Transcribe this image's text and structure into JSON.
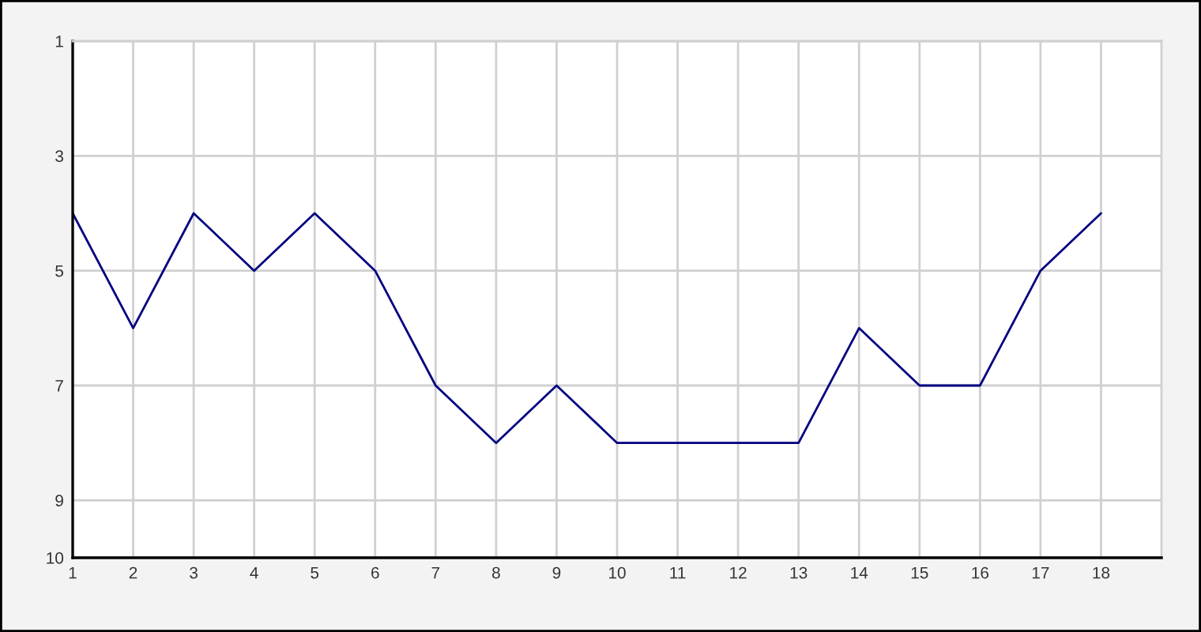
{
  "chart_data": {
    "type": "line",
    "x": [
      1,
      2,
      3,
      4,
      5,
      6,
      7,
      8,
      9,
      10,
      11,
      12,
      13,
      14,
      15,
      16,
      17,
      18
    ],
    "values": [
      4,
      6,
      4,
      5,
      4,
      5,
      7,
      8,
      7,
      8,
      8,
      8,
      8,
      6,
      7,
      7,
      5,
      4
    ],
    "color": "#000080",
    "line_style": "solid",
    "xlim": [
      1,
      19
    ],
    "xticks": [
      1,
      2,
      3,
      4,
      5,
      6,
      7,
      8,
      9,
      10,
      11,
      12,
      13,
      14,
      15,
      16,
      17,
      18
    ],
    "ylim": [
      10,
      1
    ],
    "yticks": [
      1,
      3,
      5,
      7,
      9,
      10
    ],
    "grid": true
  }
}
